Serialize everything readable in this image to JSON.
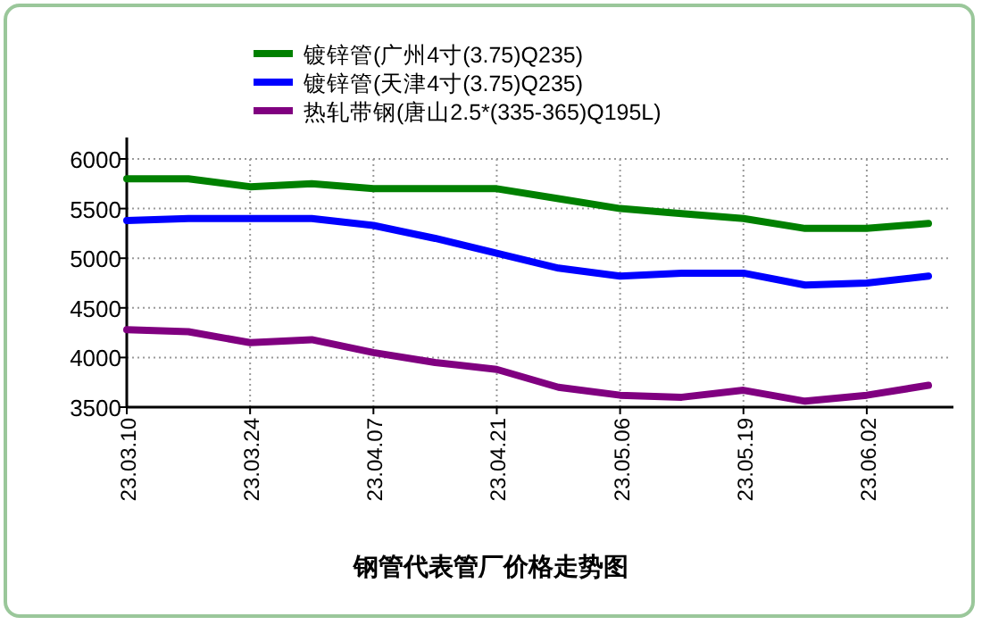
{
  "chart_data": {
    "type": "line",
    "title": "钢管代表管厂价格走势图",
    "categories": [
      "23.03.10",
      null,
      "23.03.24",
      null,
      "23.04.07",
      null,
      "23.04.21",
      null,
      "23.05.06",
      null,
      "23.05.19",
      null,
      "23.06.02",
      null
    ],
    "series": [
      {
        "name": "镀锌管(广州4寸(3.75)Q235)",
        "color": "#008000",
        "values": [
          5800,
          5800,
          5720,
          5750,
          5700,
          5700,
          5700,
          5600,
          5500,
          5450,
          5400,
          5300,
          5300,
          5350
        ]
      },
      {
        "name": "镀锌管(天津4寸(3.75)Q235)",
        "color": "#0000ff",
        "values": [
          5380,
          5400,
          5400,
          5400,
          5330,
          5200,
          5050,
          4900,
          4820,
          4850,
          4850,
          4730,
          4750,
          4820
        ]
      },
      {
        "name": "热轧带钢(唐山2.5*(335-365)Q195L)",
        "color": "#800080",
        "values": [
          4280,
          4260,
          4150,
          4180,
          4050,
          3950,
          3880,
          3700,
          3620,
          3600,
          3670,
          3560,
          3620,
          3720
        ]
      }
    ],
    "ylim": [
      3500,
      6000
    ],
    "yticks": [
      3500,
      4000,
      4500,
      5000,
      5500,
      6000
    ],
    "grid": true,
    "legend": "top",
    "marker": "none",
    "line_style": "solid"
  }
}
